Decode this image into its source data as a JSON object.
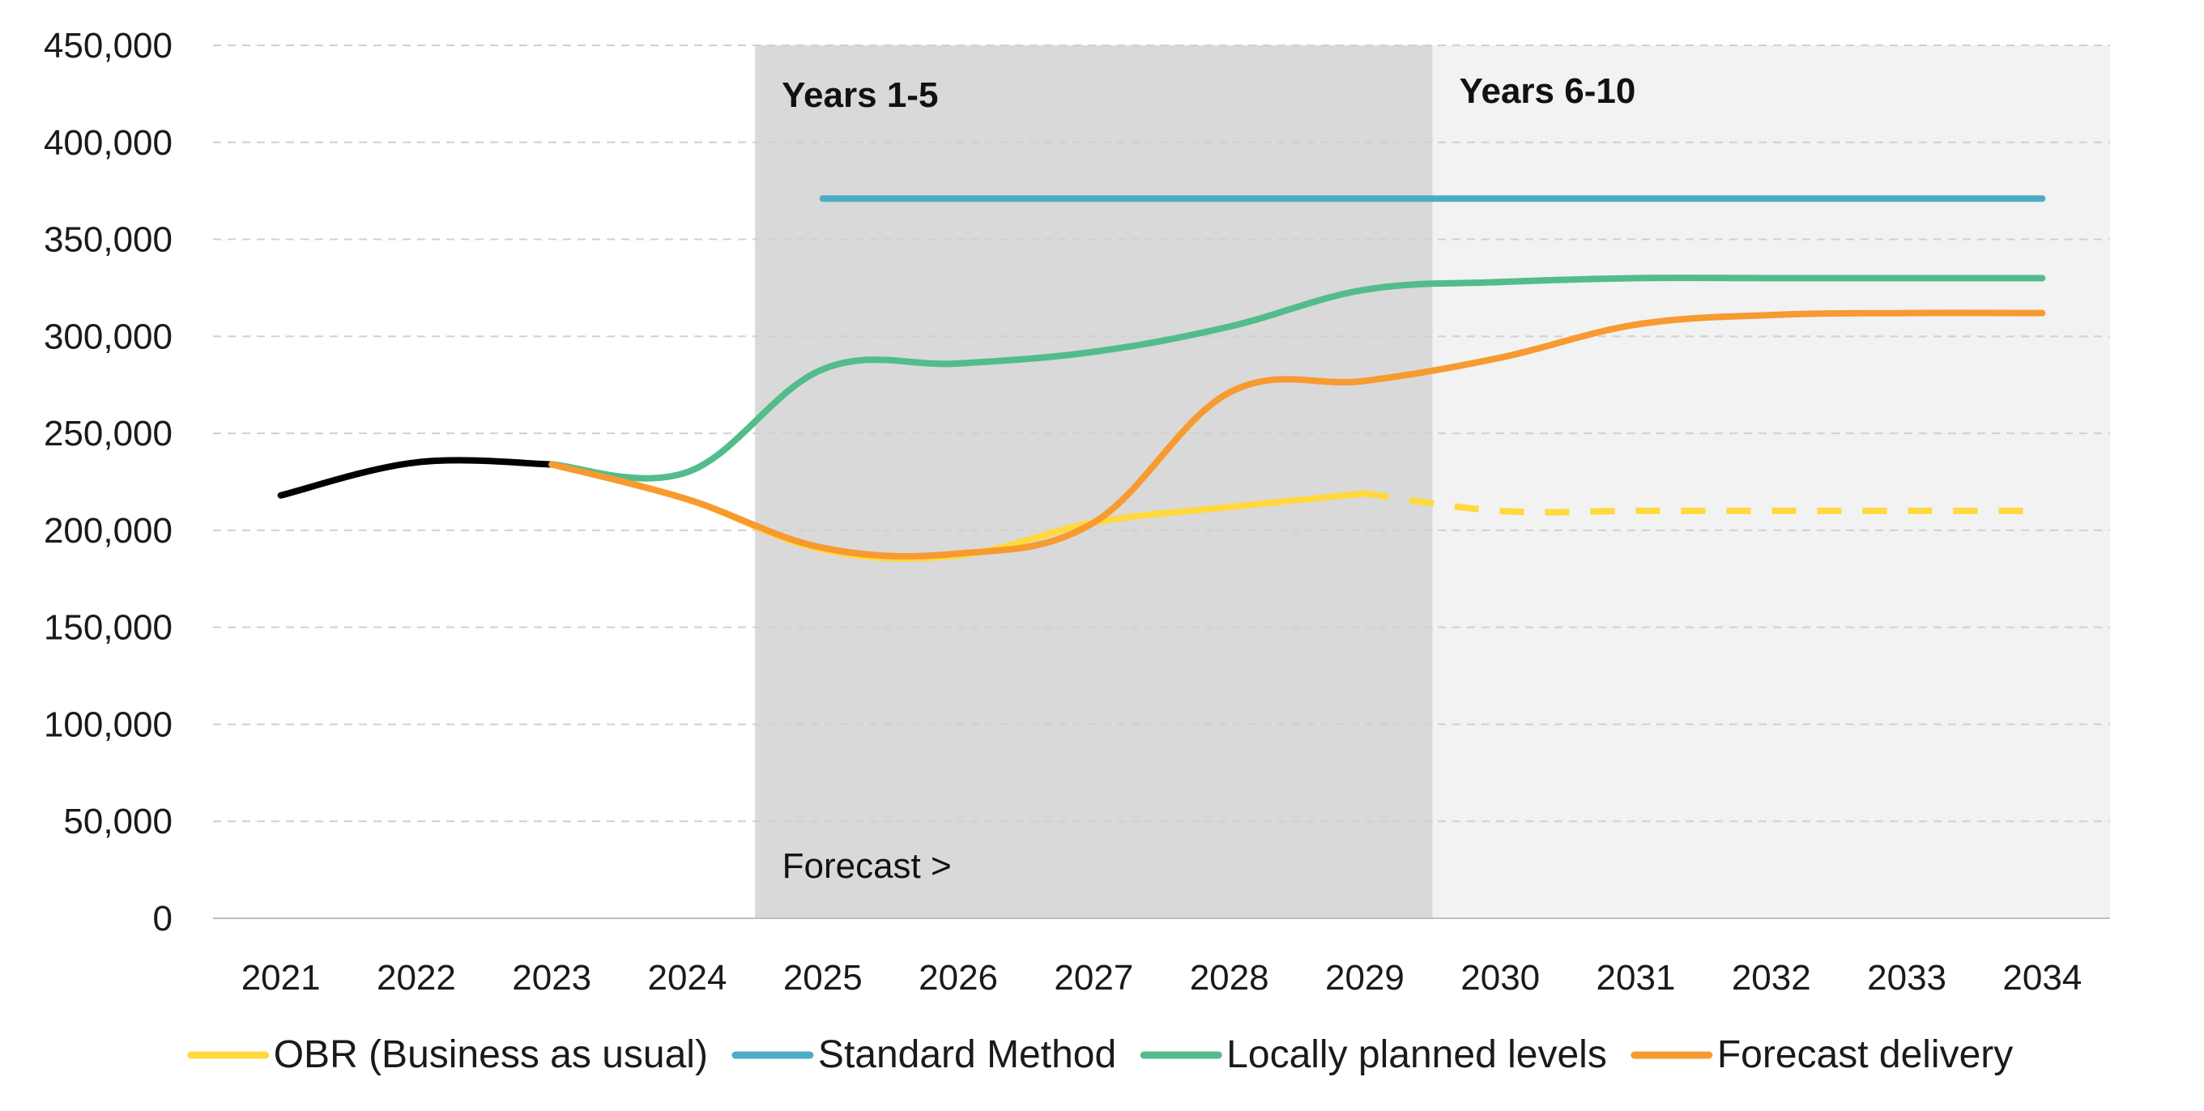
{
  "chart_data": {
    "type": "line",
    "x": [
      2021,
      2022,
      2023,
      2024,
      2025,
      2026,
      2027,
      2028,
      2029,
      2030,
      2031,
      2032,
      2033,
      2034
    ],
    "ylim": [
      0,
      450000
    ],
    "yticks": [
      "0",
      "50,000",
      "100,000",
      "150,000",
      "200,000",
      "250,000",
      "300,000",
      "350,000",
      "400,000",
      "450,000"
    ],
    "xticks": [
      "2021",
      "2022",
      "2023",
      "2024",
      "2025",
      "2026",
      "2027",
      "2028",
      "2029",
      "2030",
      "2031",
      "2032",
      "2033",
      "2034"
    ],
    "grid": true,
    "gridStyle": "dashed-horizontal",
    "legend": "bottom",
    "bands": [
      {
        "label": "Years 1-5",
        "from": 2024.5,
        "to": 2029.5,
        "color": "#d9d9d9"
      },
      {
        "label": "Years 6-10",
        "from": 2029.5,
        "to": 2034.5,
        "color": "#f2f2f2"
      }
    ],
    "annotation": {
      "text": "Forecast >",
      "x": 2024.7,
      "y": 25000
    },
    "series": [
      {
        "key": "history",
        "color": "#000000",
        "points": [
          [
            2021,
            218000
          ],
          [
            2022,
            235000
          ],
          [
            2023,
            234000
          ]
        ]
      },
      {
        "key": "standard",
        "name": "Standard Method",
        "color": "#4bacc6",
        "points": [
          [
            2025,
            371000
          ],
          [
            2026,
            371000
          ],
          [
            2027,
            371000
          ],
          [
            2028,
            371000
          ],
          [
            2029,
            371000
          ],
          [
            2030,
            371000
          ],
          [
            2031,
            371000
          ],
          [
            2032,
            371000
          ],
          [
            2033,
            371000
          ],
          [
            2034,
            371000
          ]
        ]
      },
      {
        "key": "obr",
        "name": "OBR (Business as usual)",
        "color": "#ffd93d",
        "points": [
          [
            2023,
            234000
          ],
          [
            2024,
            216000
          ],
          [
            2025,
            190000
          ],
          [
            2026,
            187000
          ],
          [
            2027,
            204000
          ],
          [
            2028,
            212000
          ],
          [
            2029,
            219000
          ]
        ]
      },
      {
        "key": "obr_dashed",
        "color": "#ffd93d",
        "dashed": true,
        "points": [
          [
            2029,
            219000
          ],
          [
            2030,
            210000
          ],
          [
            2031,
            210000
          ],
          [
            2032,
            210000
          ],
          [
            2033,
            210000
          ],
          [
            2034,
            210000
          ]
        ]
      },
      {
        "key": "local",
        "name": "Locally planned levels",
        "color": "#52bc8c",
        "points": [
          [
            2023,
            234000
          ],
          [
            2024,
            230000
          ],
          [
            2025,
            283000
          ],
          [
            2026,
            286000
          ],
          [
            2027,
            292000
          ],
          [
            2028,
            305000
          ],
          [
            2029,
            324000
          ],
          [
            2030,
            328000
          ],
          [
            2031,
            330000
          ],
          [
            2032,
            330000
          ],
          [
            2033,
            330000
          ],
          [
            2034,
            330000
          ]
        ]
      },
      {
        "key": "forecast",
        "name": "Forecast delivery",
        "color": "#f79a30",
        "points": [
          [
            2023,
            234000
          ],
          [
            2024,
            216000
          ],
          [
            2025,
            191000
          ],
          [
            2026,
            188000
          ],
          [
            2027,
            204000
          ],
          [
            2028,
            271000
          ],
          [
            2029,
            277000
          ],
          [
            2030,
            289000
          ],
          [
            2031,
            306000
          ],
          [
            2032,
            311000
          ],
          [
            2033,
            312000
          ],
          [
            2034,
            312000
          ]
        ]
      }
    ],
    "legend_order": [
      "obr",
      "standard",
      "local",
      "forecast"
    ]
  }
}
